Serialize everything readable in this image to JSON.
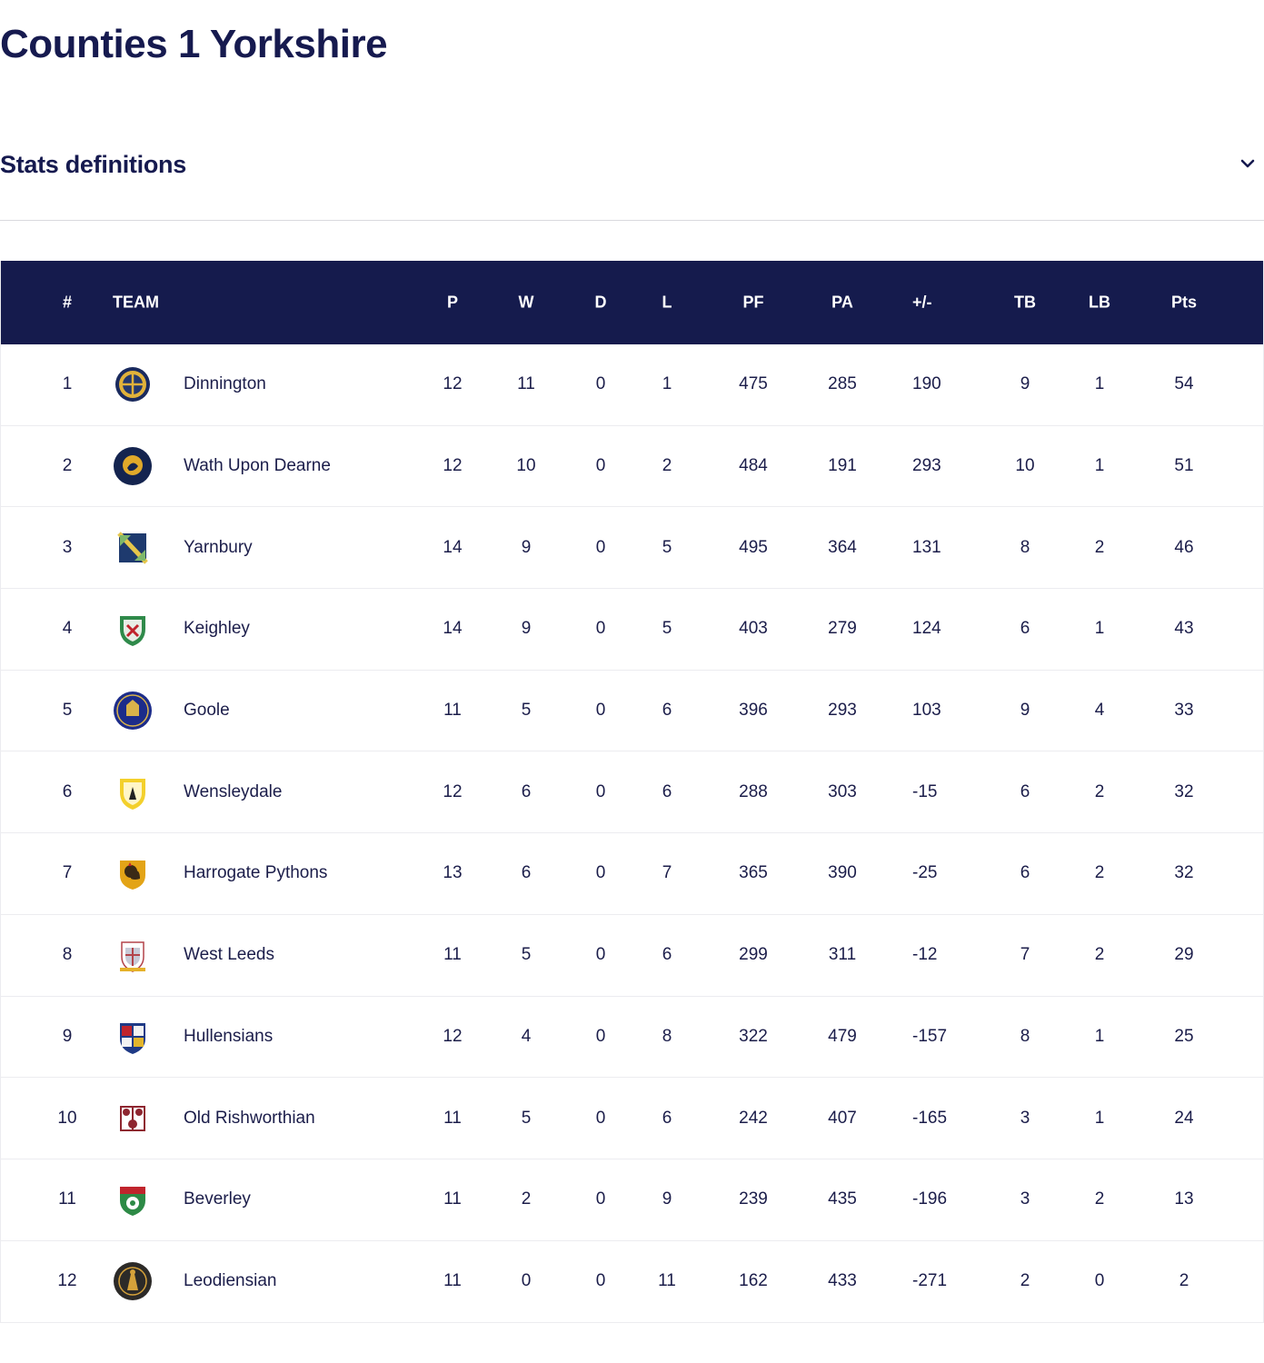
{
  "page_title": "Counties 1 Yorkshire",
  "stats_definitions": {
    "label": "Stats definitions",
    "icon": "chevron-down-icon"
  },
  "table": {
    "headers": {
      "rank": "#",
      "team": "TEAM",
      "played": "P",
      "won": "W",
      "drawn": "D",
      "lost": "L",
      "points_for": "PF",
      "points_against": "PA",
      "difference": "+/-",
      "try_bonus": "TB",
      "losing_bonus": "LB",
      "points": "Pts"
    },
    "rows": [
      {
        "rank": "1",
        "team": "Dinnington",
        "logo": "dinnington-crest",
        "P": "12",
        "W": "11",
        "D": "0",
        "L": "1",
        "PF": "475",
        "PA": "285",
        "diff": "190",
        "TB": "9",
        "LB": "1",
        "Pts": "54"
      },
      {
        "rank": "2",
        "team": "Wath Upon Dearne",
        "logo": "wath-upon-dearne-crest",
        "P": "12",
        "W": "10",
        "D": "0",
        "L": "2",
        "PF": "484",
        "PA": "191",
        "diff": "293",
        "TB": "10",
        "LB": "1",
        "Pts": "51"
      },
      {
        "rank": "3",
        "team": "Yarnbury",
        "logo": "yarnbury-crest",
        "P": "14",
        "W": "9",
        "D": "0",
        "L": "5",
        "PF": "495",
        "PA": "364",
        "diff": "131",
        "TB": "8",
        "LB": "2",
        "Pts": "46"
      },
      {
        "rank": "4",
        "team": "Keighley",
        "logo": "keighley-crest",
        "P": "14",
        "W": "9",
        "D": "0",
        "L": "5",
        "PF": "403",
        "PA": "279",
        "diff": "124",
        "TB": "6",
        "LB": "1",
        "Pts": "43"
      },
      {
        "rank": "5",
        "team": "Goole",
        "logo": "goole-crest",
        "P": "11",
        "W": "5",
        "D": "0",
        "L": "6",
        "PF": "396",
        "PA": "293",
        "diff": "103",
        "TB": "9",
        "LB": "4",
        "Pts": "33"
      },
      {
        "rank": "6",
        "team": "Wensleydale",
        "logo": "wensleydale-crest",
        "P": "12",
        "W": "6",
        "D": "0",
        "L": "6",
        "PF": "288",
        "PA": "303",
        "diff": "-15",
        "TB": "6",
        "LB": "2",
        "Pts": "32"
      },
      {
        "rank": "7",
        "team": "Harrogate Pythons",
        "logo": "harrogate-crest",
        "P": "13",
        "W": "6",
        "D": "0",
        "L": "7",
        "PF": "365",
        "PA": "390",
        "diff": "-25",
        "TB": "6",
        "LB": "2",
        "Pts": "32"
      },
      {
        "rank": "8",
        "team": "West Leeds",
        "logo": "west-leeds-crest",
        "P": "11",
        "W": "5",
        "D": "0",
        "L": "6",
        "PF": "299",
        "PA": "311",
        "diff": "-12",
        "TB": "7",
        "LB": "2",
        "Pts": "29"
      },
      {
        "rank": "9",
        "team": "Hullensians",
        "logo": "hullensians-crest",
        "P": "12",
        "W": "4",
        "D": "0",
        "L": "8",
        "PF": "322",
        "PA": "479",
        "diff": "-157",
        "TB": "8",
        "LB": "1",
        "Pts": "25"
      },
      {
        "rank": "10",
        "team": "Old Rishworthian",
        "logo": "old-rishworthian-crest",
        "P": "11",
        "W": "5",
        "D": "0",
        "L": "6",
        "PF": "242",
        "PA": "407",
        "diff": "-165",
        "TB": "3",
        "LB": "1",
        "Pts": "24"
      },
      {
        "rank": "11",
        "team": "Beverley",
        "logo": "beverley-crest",
        "P": "11",
        "W": "2",
        "D": "0",
        "L": "9",
        "PF": "239",
        "PA": "435",
        "diff": "-196",
        "TB": "3",
        "LB": "2",
        "Pts": "13"
      },
      {
        "rank": "12",
        "team": "Leodiensian",
        "logo": "leodiensian-crest",
        "P": "11",
        "W": "0",
        "D": "0",
        "L": "11",
        "PF": "162",
        "PA": "433",
        "diff": "-271",
        "TB": "2",
        "LB": "0",
        "Pts": "2"
      }
    ]
  },
  "colors": {
    "header_bg": "#151b4d",
    "title": "#161a4f",
    "row_border": "#ececf0"
  }
}
